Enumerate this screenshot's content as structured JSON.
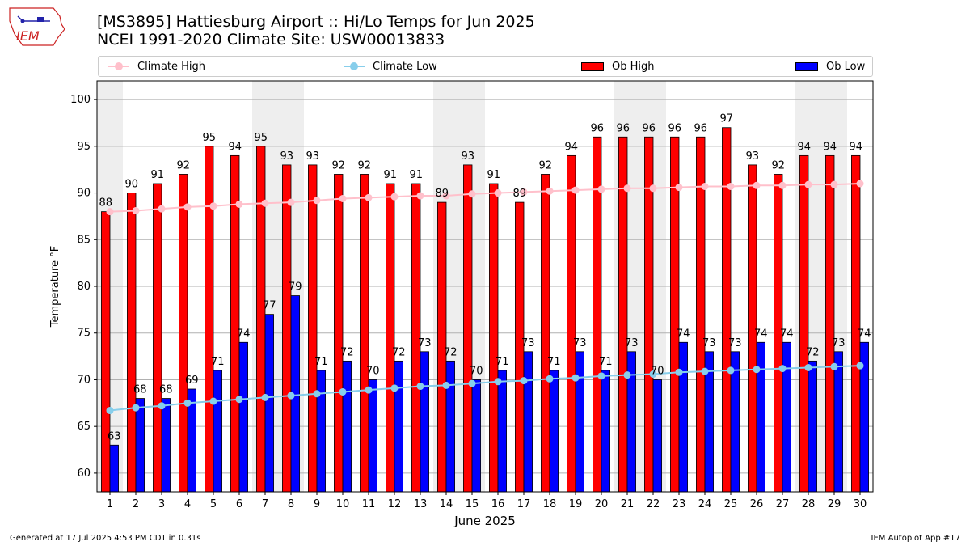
{
  "header": {
    "title_line1": "[MS3895] Hattiesburg Airport :: Hi/Lo Temps for Jun 2025",
    "title_line2": "NCEI 1991-2020 Climate Site: USW00013833",
    "logo_text": "IEM"
  },
  "legend": {
    "climate_high": "Climate High",
    "climate_low": "Climate Low",
    "ob_high": "Ob High",
    "ob_low": "Ob Low"
  },
  "colors": {
    "ob_high": "#ff0000",
    "ob_low": "#0000ff",
    "climate_high": "#ffc0cb",
    "climate_low": "#87ceeb",
    "weekend_shade": "#eeeeee"
  },
  "footer": {
    "generated": "Generated at 17 Jul 2025 4:53 PM CDT in 0.31s",
    "app": "IEM Autoplot App #17"
  },
  "chart_data": {
    "type": "bar",
    "title": "[MS3895] Hattiesburg Airport :: Hi/Lo Temps for Jun 2025",
    "subtitle": "NCEI 1991-2020 Climate Site: USW00013833",
    "xlabel": "June 2025",
    "ylabel": "Temperature °F",
    "ylim": [
      58,
      102
    ],
    "yticks": [
      60,
      65,
      70,
      75,
      80,
      85,
      90,
      95,
      100
    ],
    "grid": true,
    "legend_position": "top",
    "categories": [
      "1",
      "2",
      "3",
      "4",
      "5",
      "6",
      "7",
      "8",
      "9",
      "10",
      "11",
      "12",
      "13",
      "14",
      "15",
      "16",
      "17",
      "18",
      "19",
      "20",
      "21",
      "22",
      "23",
      "24",
      "25",
      "26",
      "27",
      "28",
      "29",
      "30"
    ],
    "weekend_days": [
      1,
      7,
      8,
      14,
      15,
      21,
      22,
      28,
      29
    ],
    "series": [
      {
        "name": "Ob High",
        "kind": "bar",
        "values": [
          88,
          90,
          91,
          92,
          95,
          94,
          95,
          93,
          93,
          92,
          92,
          91,
          91,
          89,
          93,
          91,
          89,
          92,
          94,
          96,
          96,
          96,
          96,
          96,
          97,
          93,
          92,
          94,
          94,
          94
        ]
      },
      {
        "name": "Ob Low",
        "kind": "bar",
        "values": [
          63,
          68,
          68,
          69,
          71,
          74,
          77,
          79,
          71,
          72,
          70,
          72,
          73,
          72,
          70,
          71,
          73,
          71,
          73,
          71,
          73,
          70,
          74,
          73,
          73,
          74,
          74,
          72,
          73,
          74
        ]
      },
      {
        "name": "Climate High",
        "kind": "line",
        "values": [
          88.0,
          88.1,
          88.3,
          88.5,
          88.6,
          88.8,
          88.9,
          89.0,
          89.2,
          89.4,
          89.5,
          89.6,
          89.7,
          89.7,
          89.9,
          90.0,
          90.1,
          90.2,
          90.3,
          90.4,
          90.5,
          90.5,
          90.6,
          90.7,
          90.7,
          90.8,
          90.8,
          90.9,
          90.9,
          91.0
        ]
      },
      {
        "name": "Climate Low",
        "kind": "line",
        "values": [
          66.7,
          67.0,
          67.2,
          67.5,
          67.7,
          67.9,
          68.1,
          68.3,
          68.5,
          68.7,
          68.9,
          69.1,
          69.3,
          69.4,
          69.6,
          69.8,
          69.9,
          70.1,
          70.2,
          70.4,
          70.5,
          70.6,
          70.8,
          70.9,
          71.0,
          71.1,
          71.2,
          71.3,
          71.4,
          71.5
        ]
      }
    ]
  }
}
